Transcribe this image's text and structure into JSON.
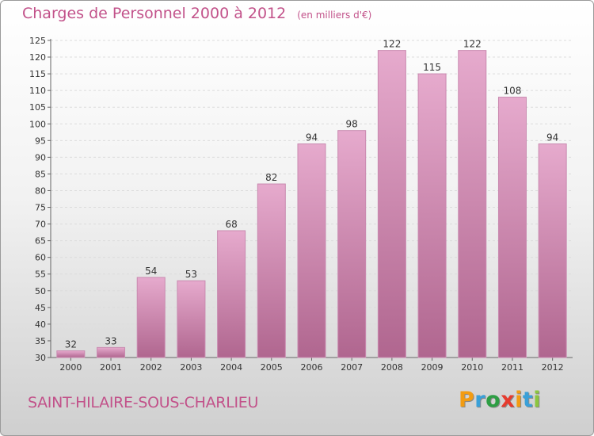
{
  "header": {
    "title": "Charges de Personnel 2000 à 2012",
    "unit": "(en milliers d'€)"
  },
  "footer": {
    "place": "SAINT-HILAIRE-SOUS-CHARLIEU",
    "logo_letters": [
      "P",
      "r",
      "o",
      "x",
      "i",
      "t",
      "i"
    ],
    "logo_colors": [
      "#f39c12",
      "#3aa0d8",
      "#2e9e44",
      "#e63b2e",
      "#f39c12",
      "#3aa0d8",
      "#8cc63f"
    ]
  },
  "colors": {
    "bar_top": "#e6aacd",
    "bar_bottom": "#b0668f",
    "bar_edge": "#c98ab0",
    "text": "#333333",
    "title": "#c2528a"
  },
  "chart_data": {
    "type": "bar",
    "title": "Charges de Personnel 2000 à 2012",
    "subtitle": "(en milliers d'€)",
    "xlabel": "",
    "ylabel": "",
    "categories": [
      "2000",
      "2001",
      "2002",
      "2003",
      "2004",
      "2005",
      "2006",
      "2007",
      "2008",
      "2009",
      "2010",
      "2011",
      "2012"
    ],
    "values": [
      32,
      33,
      54,
      53,
      68,
      82,
      94,
      98,
      122,
      115,
      122,
      108,
      94
    ],
    "ylim": [
      30,
      125
    ],
    "yticks": [
      30,
      35,
      40,
      45,
      50,
      55,
      60,
      65,
      70,
      75,
      80,
      85,
      90,
      95,
      100,
      105,
      110,
      115,
      120,
      125
    ],
    "grid": true,
    "legend": "none"
  }
}
